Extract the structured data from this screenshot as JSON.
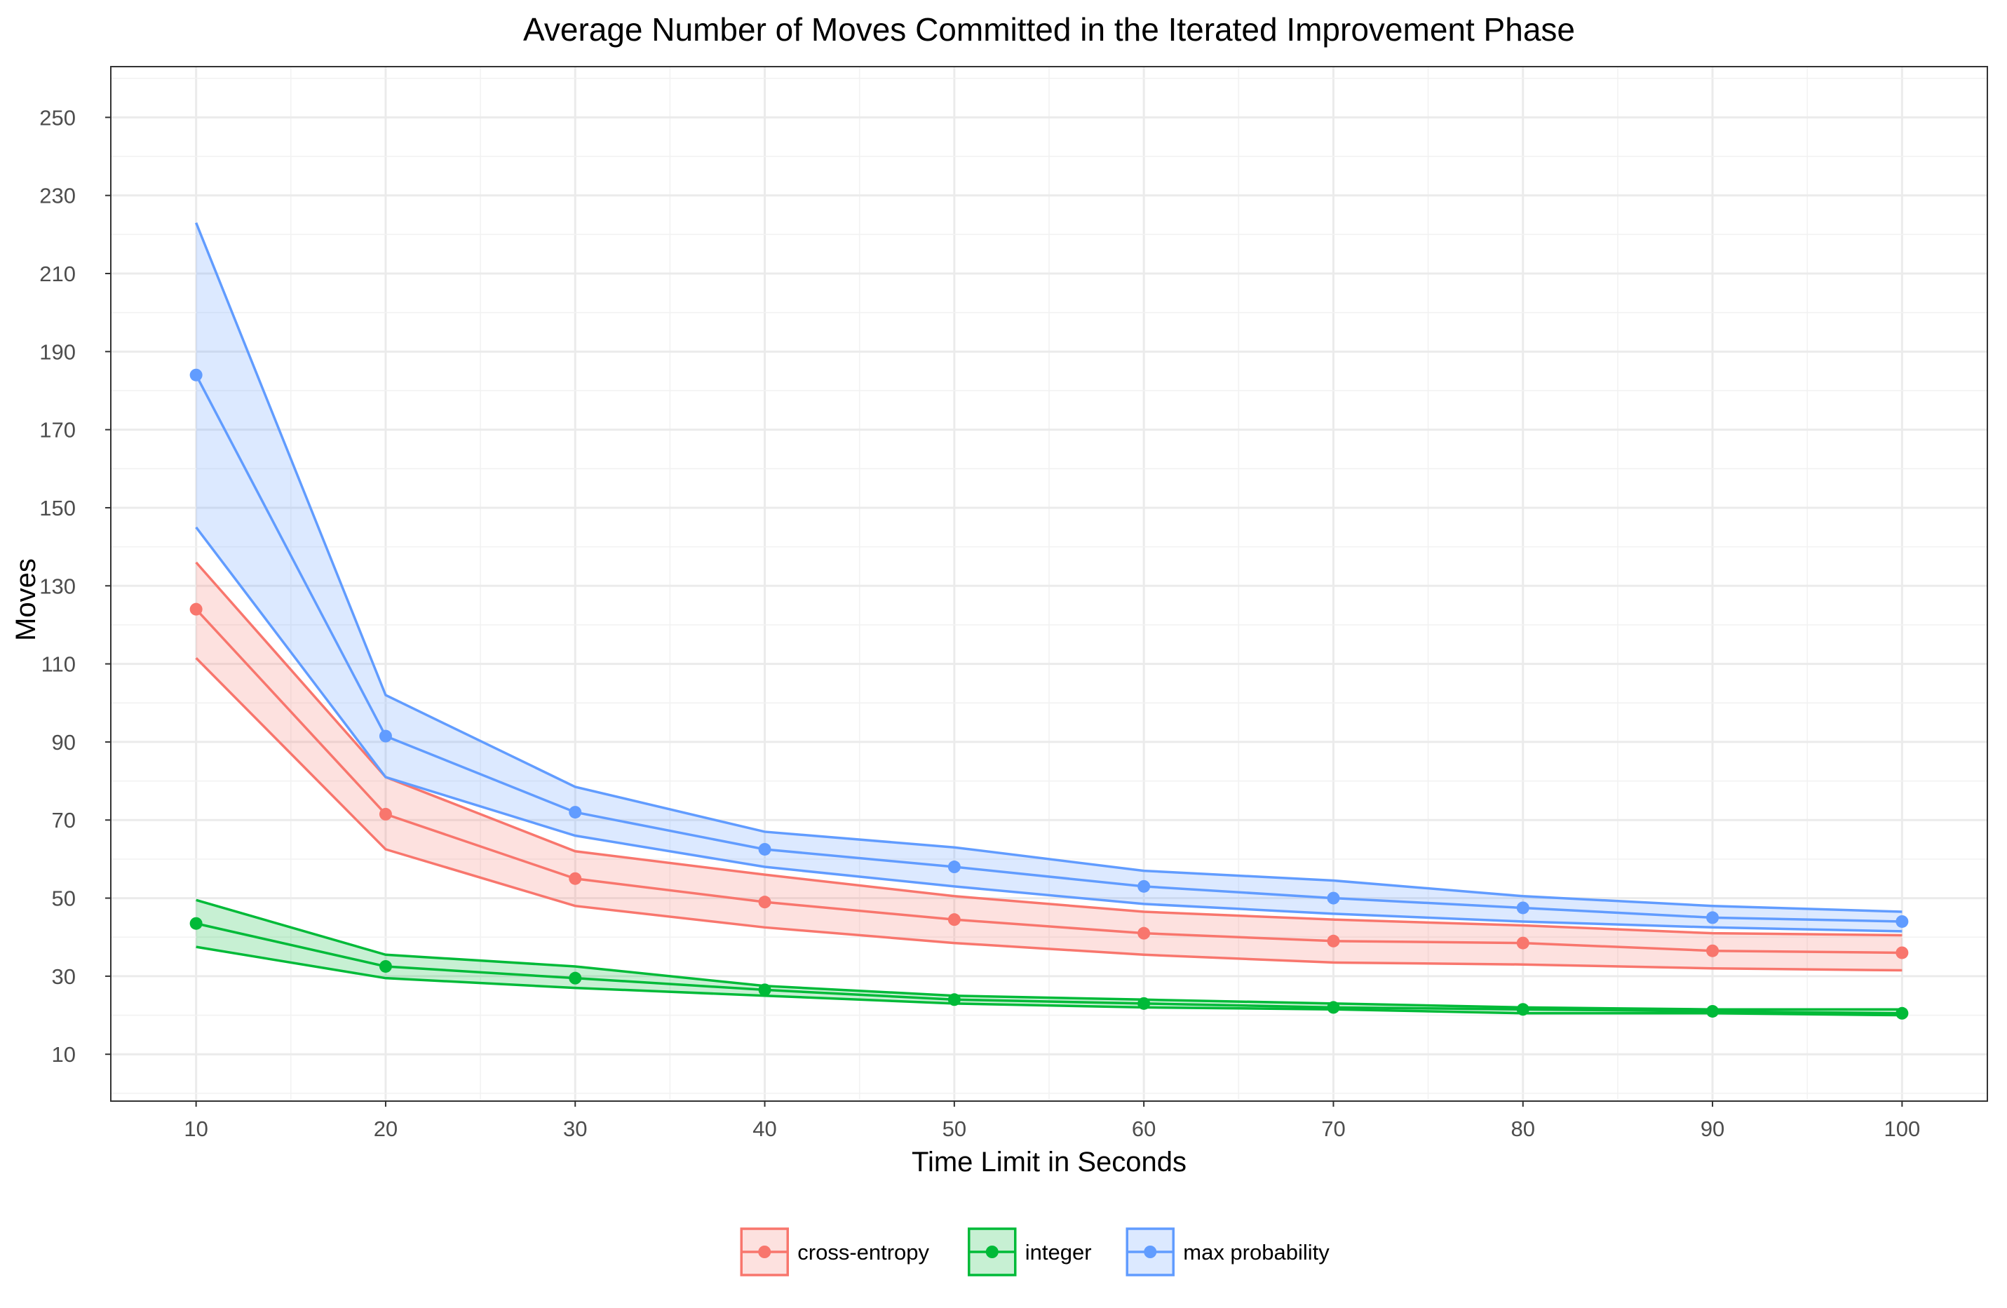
{
  "chart_data": {
    "type": "line",
    "title": "Average Number of Moves Committed in the Iterated Improvement Phase",
    "xlabel": "Time Limit in Seconds",
    "ylabel": "Moves",
    "x": [
      10,
      20,
      30,
      40,
      50,
      60,
      70,
      80,
      90,
      100
    ],
    "xticks": [
      10,
      20,
      30,
      40,
      50,
      60,
      70,
      80,
      90,
      100
    ],
    "yticks": [
      10,
      30,
      50,
      70,
      90,
      110,
      130,
      150,
      170,
      190,
      210,
      230,
      250
    ],
    "xlim": [
      5.5,
      104.5
    ],
    "ylim": [
      -2,
      263
    ],
    "grid": true,
    "legend_position": "bottom",
    "series": [
      {
        "name": "cross-entropy",
        "color": "#F8766D",
        "values": [
          124,
          71.5,
          55,
          49,
          44.5,
          41,
          39,
          38.5,
          36.5,
          36
        ],
        "lower": [
          111.5,
          62.5,
          48,
          42.5,
          38.5,
          35.5,
          33.5,
          33,
          32,
          31.5
        ],
        "upper": [
          136,
          81,
          62,
          56,
          50.5,
          46.5,
          44.5,
          43,
          41,
          40.5
        ]
      },
      {
        "name": "integer",
        "color": "#00BA38",
        "values": [
          43.5,
          32.5,
          29.5,
          26.5,
          24,
          23,
          22,
          21.5,
          21,
          20.5
        ],
        "lower": [
          37.5,
          29.5,
          27,
          25,
          23,
          22,
          21.5,
          20.5,
          20.5,
          20
        ],
        "upper": [
          49.5,
          35.5,
          32.5,
          27.5,
          25,
          24,
          23,
          22,
          21.5,
          21.5
        ]
      },
      {
        "name": "max probability",
        "color": "#619CFF",
        "values": [
          184,
          91.5,
          72,
          62.5,
          58,
          53,
          50,
          47.5,
          45,
          44
        ],
        "lower": [
          145,
          81,
          66,
          58,
          53,
          48.5,
          46,
          44,
          42.5,
          41.5
        ],
        "upper": [
          223,
          102,
          78.5,
          67,
          63,
          57,
          54.5,
          50.5,
          48,
          46.5
        ]
      }
    ]
  }
}
